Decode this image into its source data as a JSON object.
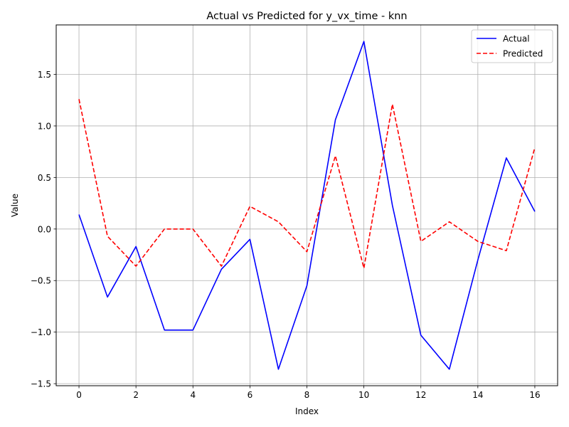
{
  "chart_data": {
    "type": "line",
    "title": "Actual vs Predicted for y_vx_time - knn",
    "xlabel": "Index",
    "ylabel": "Value",
    "xlim": [
      -0.8,
      16.8
    ],
    "ylim": [
      -1.52,
      1.98
    ],
    "x_ticks": [
      0,
      2,
      4,
      6,
      8,
      10,
      12,
      14,
      16
    ],
    "x_tick_labels": [
      "0",
      "2",
      "4",
      "6",
      "8",
      "10",
      "12",
      "14",
      "16"
    ],
    "y_ticks": [
      -1.5,
      -1.0,
      -0.5,
      0.0,
      0.5,
      1.0,
      1.5
    ],
    "y_tick_labels": [
      "−1.5",
      "−1.0",
      "−0.5",
      "0.0",
      "0.5",
      "1.0",
      "1.5"
    ],
    "grid": true,
    "legend_position": "top-right",
    "x": [
      0,
      1,
      2,
      3,
      4,
      5,
      6,
      7,
      8,
      9,
      10,
      11,
      12,
      13,
      14,
      15,
      16
    ],
    "series": [
      {
        "name": "Actual",
        "color": "#0000ff",
        "style": "solid",
        "values": [
          0.14,
          -0.66,
          -0.17,
          -0.98,
          -0.98,
          -0.39,
          -0.1,
          -1.36,
          -0.55,
          1.06,
          1.82,
          0.23,
          -1.03,
          -1.36,
          -0.3,
          0.69,
          0.17
        ]
      },
      {
        "name": "Predicted",
        "color": "#ff0000",
        "style": "dashed",
        "values": [
          1.26,
          -0.07,
          -0.36,
          0.0,
          0.0,
          -0.36,
          0.22,
          0.07,
          -0.22,
          0.71,
          -0.38,
          1.21,
          -0.12,
          0.07,
          -0.12,
          -0.21,
          0.79
        ]
      }
    ]
  }
}
